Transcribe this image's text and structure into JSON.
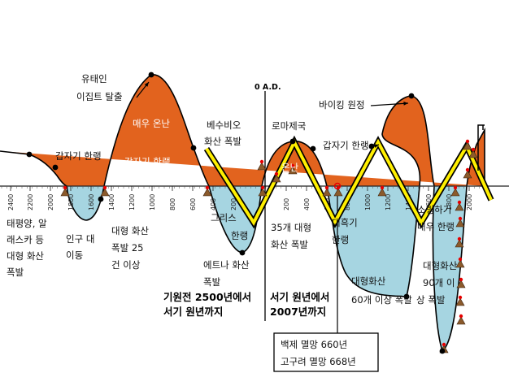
{
  "chart_data": {
    "type": "area",
    "title": "",
    "xlabel": "",
    "ylabel": "",
    "x_axis_direction": "left-to-right: BC years decreasing, then AD years increasing",
    "axis_marker": "0 A.D.",
    "x_ticks_bc": [
      "2400",
      "2200",
      "2000",
      "1800",
      "1600",
      "1400",
      "1200",
      "1000",
      "800",
      "600",
      "400",
      "200"
    ],
    "x_ticks_ad": [
      "200",
      "400",
      "600",
      "800",
      "1000",
      "1200",
      "1400",
      "1600",
      "1800",
      "2000"
    ],
    "colors": {
      "warm": "#e2631e",
      "cold": "#a6d5e1",
      "stroke": "#000000",
      "zigzag": "#ffef00",
      "eruption_marker": "#8b5a2b",
      "red_marker": "#e60000"
    },
    "series": [
      {
        "name": "warm",
        "label": "온난"
      },
      {
        "name": "cold",
        "label": "한랭"
      }
    ],
    "periods": [
      {
        "kind": "warm",
        "label": "온난",
        "approx_range": "BC 2500 – BC 1950"
      },
      {
        "kind": "cold",
        "label": "",
        "approx_range": "BC 1900 – BC 1450"
      },
      {
        "kind": "warm",
        "label": "매우 온난",
        "approx_range": "BC 1450 – BC 700"
      },
      {
        "kind": "cold",
        "label": "그리스 한랭",
        "approx_range": "BC 700 – AD 30"
      },
      {
        "kind": "warm",
        "label": "로마제국",
        "approx_range": "AD 30 – AD 550"
      },
      {
        "kind": "cold",
        "label": "대흑기 한랭",
        "approx_range": "AD 550 – AD 900"
      },
      {
        "kind": "warm",
        "label": "바이킹 원정",
        "approx_range": "AD 900 – AD 1350"
      },
      {
        "kind": "cold",
        "label": "소빙하기 매우 한랭",
        "approx_range": "AD 1350 – AD 1900"
      },
      {
        "kind": "warm",
        "label": "",
        "approx_range": "AD 1900 – AD 2000"
      }
    ],
    "annotations": [
      {
        "id": "warm1",
        "text": "온난"
      },
      {
        "id": "sudden-cold-1",
        "text": "갑자기 한랭"
      },
      {
        "id": "pacific",
        "lines": [
          "태평양, 알",
          "래스카 등",
          "대형 화산",
          "폭발"
        ]
      },
      {
        "id": "migration",
        "lines": [
          "인구 대",
          "이동"
        ]
      },
      {
        "id": "eruptions25",
        "lines": [
          "대형 화산",
          "폭발 25",
          "건 이상"
        ]
      },
      {
        "id": "exodus",
        "lines": [
          "유태인",
          "이집트 탈출"
        ]
      },
      {
        "id": "very-warm",
        "text": "매우 온난"
      },
      {
        "id": "sudden-cold-2",
        "text": "갑자기 한랭"
      },
      {
        "id": "vesuvius",
        "lines": [
          "베수비오",
          "화산 폭발"
        ]
      },
      {
        "id": "greek",
        "lines": [
          "그리스",
          "한랭"
        ]
      },
      {
        "id": "etna",
        "lines": [
          "에트나 화산",
          "폭발"
        ]
      },
      {
        "id": "rome",
        "text": "로마제국"
      },
      {
        "id": "onnan-rome",
        "text": "온난"
      },
      {
        "id": "eruptions35",
        "lines": [
          "35개 대형",
          "화산 폭발"
        ]
      },
      {
        "id": "sudden-cold-3",
        "text": "갑자기 한랭"
      },
      {
        "id": "dark-age",
        "lines": [
          "대흑기",
          "한랭"
        ]
      },
      {
        "id": "eruptions60",
        "lines": [
          "대형화산",
          "60개 이상 폭발"
        ]
      },
      {
        "id": "viking",
        "text": "바이킹 원정"
      },
      {
        "id": "little-ice",
        "lines": [
          "소빙하기",
          "매우 한랭"
        ]
      },
      {
        "id": "eruptions90",
        "lines": [
          "대형화산",
          "90개 이",
          "상 폭발"
        ]
      },
      {
        "id": "bc-range",
        "lines": [
          "기원전 2500년에서",
          "서기 원년까지"
        ]
      },
      {
        "id": "ad-range",
        "lines": [
          "서기 원년에서",
          "2007년까지"
        ]
      }
    ],
    "callout_box": {
      "lines": [
        "백제 멸망 660년",
        "고구려 멸망 668년"
      ],
      "points_to": "AD 660"
    }
  }
}
